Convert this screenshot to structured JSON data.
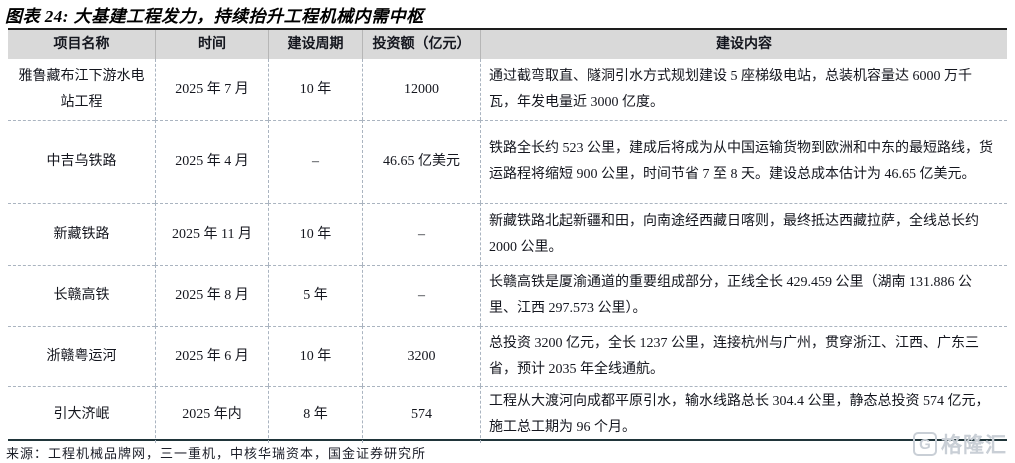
{
  "title": "图表 24: 大基建工程发力，持续抬升工程机械内需中枢",
  "table": {
    "headers": [
      "项目名称",
      "时间",
      "建设周期",
      "投资额（亿元）",
      "建设内容"
    ],
    "rows": [
      {
        "name": "雅鲁藏布江下游水电站工程",
        "time": "2025 年 7 月",
        "period": "10 年",
        "investment": "12000",
        "content": "通过截弯取直、隧洞引水方式规划建设 5 座梯级电站，总装机容量达 6000 万千瓦，年发电量近 3000 亿度。"
      },
      {
        "name": "中吉乌铁路",
        "time": "2025 年 4 月",
        "period": "–",
        "investment": "46.65 亿美元",
        "content": "铁路全长约 523 公里，建成后将成为从中国运输货物到欧洲和中东的最短路线，货运路程将缩短 900 公里，时间节省 7 至 8 天。建设总成本估计为 46.65 亿美元。"
      },
      {
        "name": "新藏铁路",
        "time": "2025 年 11 月",
        "period": "10 年",
        "investment": "–",
        "content": "新藏铁路北起新疆和田，向南途经西藏日喀则，最终抵达西藏拉萨，全线总长约 2000 公里。"
      },
      {
        "name": "长赣高铁",
        "time": "2025 年 8 月",
        "period": "5 年",
        "investment": "–",
        "content": "长赣高铁是厦渝通道的重要组成部分，正线全长 429.459 公里（湖南 131.886 公里、江西 297.573 公里）。"
      },
      {
        "name": "浙赣粤运河",
        "time": "2025 年 6 月",
        "period": "10 年",
        "investment": "3200",
        "content": "总投资 3200 亿元，全长 1237 公里，连接杭州与广州，贯穿浙江、江西、广东三省，预计 2035 年全线通航。"
      },
      {
        "name": "引大济岷",
        "time": "2025 年内",
        "period": "8 年",
        "investment": "574",
        "content": "工程从大渡河向成都平原引水，输水线路总长 304.4 公里，静态总投资 574 亿元，施工总工期为 96 个月。"
      }
    ]
  },
  "footer": {
    "source": "来源：工程机械品牌网，三一重机，中核华瑞资本，国金证券研究所"
  },
  "watermark": {
    "icon": "G",
    "label": "格隆汇"
  },
  "colors": {
    "header_bg": "#d9d9d9",
    "border_dark": "#1d1d1d",
    "cell_border": "#aab4c0",
    "text": "#14161e",
    "watermark": "#c9cfd6"
  }
}
